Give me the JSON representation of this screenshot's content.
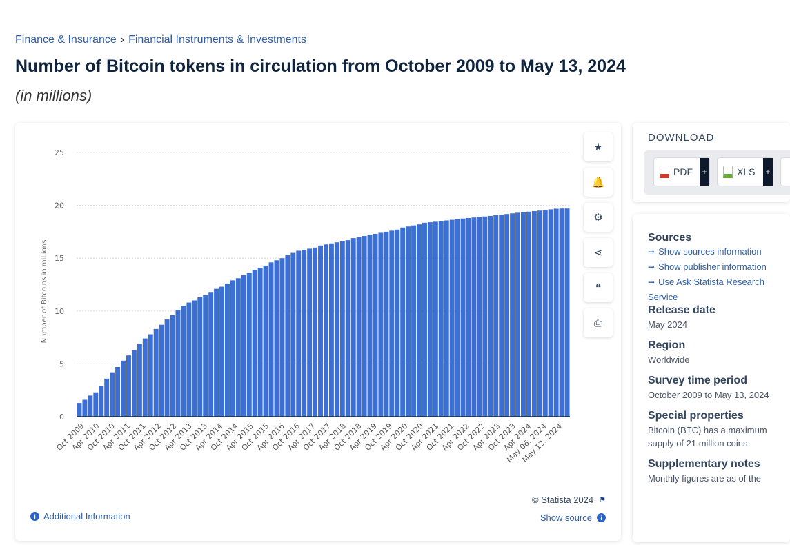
{
  "breadcrumb": [
    "Finance & Insurance",
    "Financial Instruments & Investments"
  ],
  "breadcrumb_sep": "›",
  "title": "Number of Bitcoin tokens in circulation from October 2009 to May 13, 2024",
  "subtitle": "(in millions)",
  "tools": [
    {
      "icon": "star-icon",
      "glyph": "★"
    },
    {
      "icon": "bell-icon",
      "glyph": "🔔"
    },
    {
      "icon": "gear-icon",
      "glyph": "⚙"
    },
    {
      "icon": "share-icon",
      "glyph": "⋖"
    },
    {
      "icon": "quote-icon",
      "glyph": "❝"
    },
    {
      "icon": "print-icon",
      "glyph": "⎙"
    }
  ],
  "footer": {
    "additional_info": "Additional Information",
    "copyright": "© Statista 2024",
    "show_source": "Show source"
  },
  "download": {
    "title": "DOWNLOAD",
    "buttons": [
      {
        "label": "PDF",
        "color": "#d33a2c"
      },
      {
        "label": "XLS",
        "color": "#6aaa3a"
      }
    ],
    "plus": "+"
  },
  "info": {
    "sources_title": "Sources",
    "links": [
      "Show sources information",
      "Show publisher information",
      "Use Ask Statista Research Service"
    ],
    "sections": [
      {
        "h": "Release date",
        "v": "May 2024"
      },
      {
        "h": "Region",
        "v": "Worldwide"
      },
      {
        "h": "Survey time period",
        "v": "October 2009 to May 13, 2024"
      },
      {
        "h": "Special properties",
        "v": "Bitcoin (BTC) has a maximum supply of 21 million coins"
      },
      {
        "h": "Supplementary notes",
        "v": "Monthly figures are as of the"
      }
    ]
  },
  "chart_data": {
    "type": "bar",
    "title": "",
    "xlabel": "",
    "ylabel": "Number of Bitcoins in millions",
    "ylim": [
      0,
      25
    ],
    "yticks": [
      0,
      5,
      10,
      15,
      20,
      25
    ],
    "grid": true,
    "bar_color": "#3b6fd4",
    "x_tick_labels": [
      "Oct 2009",
      "Apr 2010",
      "Oct 2010",
      "Apr 2011",
      "Oct 2011",
      "Apr 2012",
      "Oct 2012",
      "Apr 2013",
      "Oct 2013",
      "Apr 2014",
      "Oct 2014",
      "Apr 2015",
      "Oct 2015",
      "Apr 2016",
      "Oct 2016",
      "Apr 2017",
      "Oct 2017",
      "Apr 2018",
      "Oct 2018",
      "Apr 2019",
      "Oct 2019",
      "Apr 2020",
      "Oct 2020",
      "Apr 2021",
      "Oct 2021",
      "Apr 2022",
      "Oct 2022",
      "Apr 2023",
      "Oct 2023",
      "Apr 2024",
      "May 06, 2024",
      "May 12, 2024"
    ],
    "values": [
      1.3,
      1.6,
      2.0,
      2.3,
      2.9,
      3.6,
      4.2,
      4.7,
      5.3,
      5.8,
      6.3,
      6.9,
      7.4,
      7.8,
      8.3,
      8.7,
      9.2,
      9.6,
      10.1,
      10.5,
      10.8,
      11.0,
      11.3,
      11.5,
      11.8,
      12.1,
      12.3,
      12.6,
      12.9,
      13.1,
      13.4,
      13.6,
      13.9,
      14.1,
      14.3,
      14.6,
      14.8,
      15.0,
      15.3,
      15.5,
      15.7,
      15.8,
      15.9,
      16.0,
      16.2,
      16.3,
      16.4,
      16.5,
      16.6,
      16.7,
      16.9,
      17.0,
      17.1,
      17.2,
      17.3,
      17.4,
      17.5,
      17.6,
      17.7,
      17.9,
      18.0,
      18.1,
      18.2,
      18.35,
      18.4,
      18.45,
      18.5,
      18.57,
      18.63,
      18.7,
      18.75,
      18.8,
      18.85,
      18.9,
      18.95,
      19.0,
      19.06,
      19.12,
      19.18,
      19.24,
      19.3,
      19.35,
      19.4,
      19.45,
      19.5,
      19.56,
      19.62,
      19.68,
      19.7,
      19.7
    ]
  }
}
